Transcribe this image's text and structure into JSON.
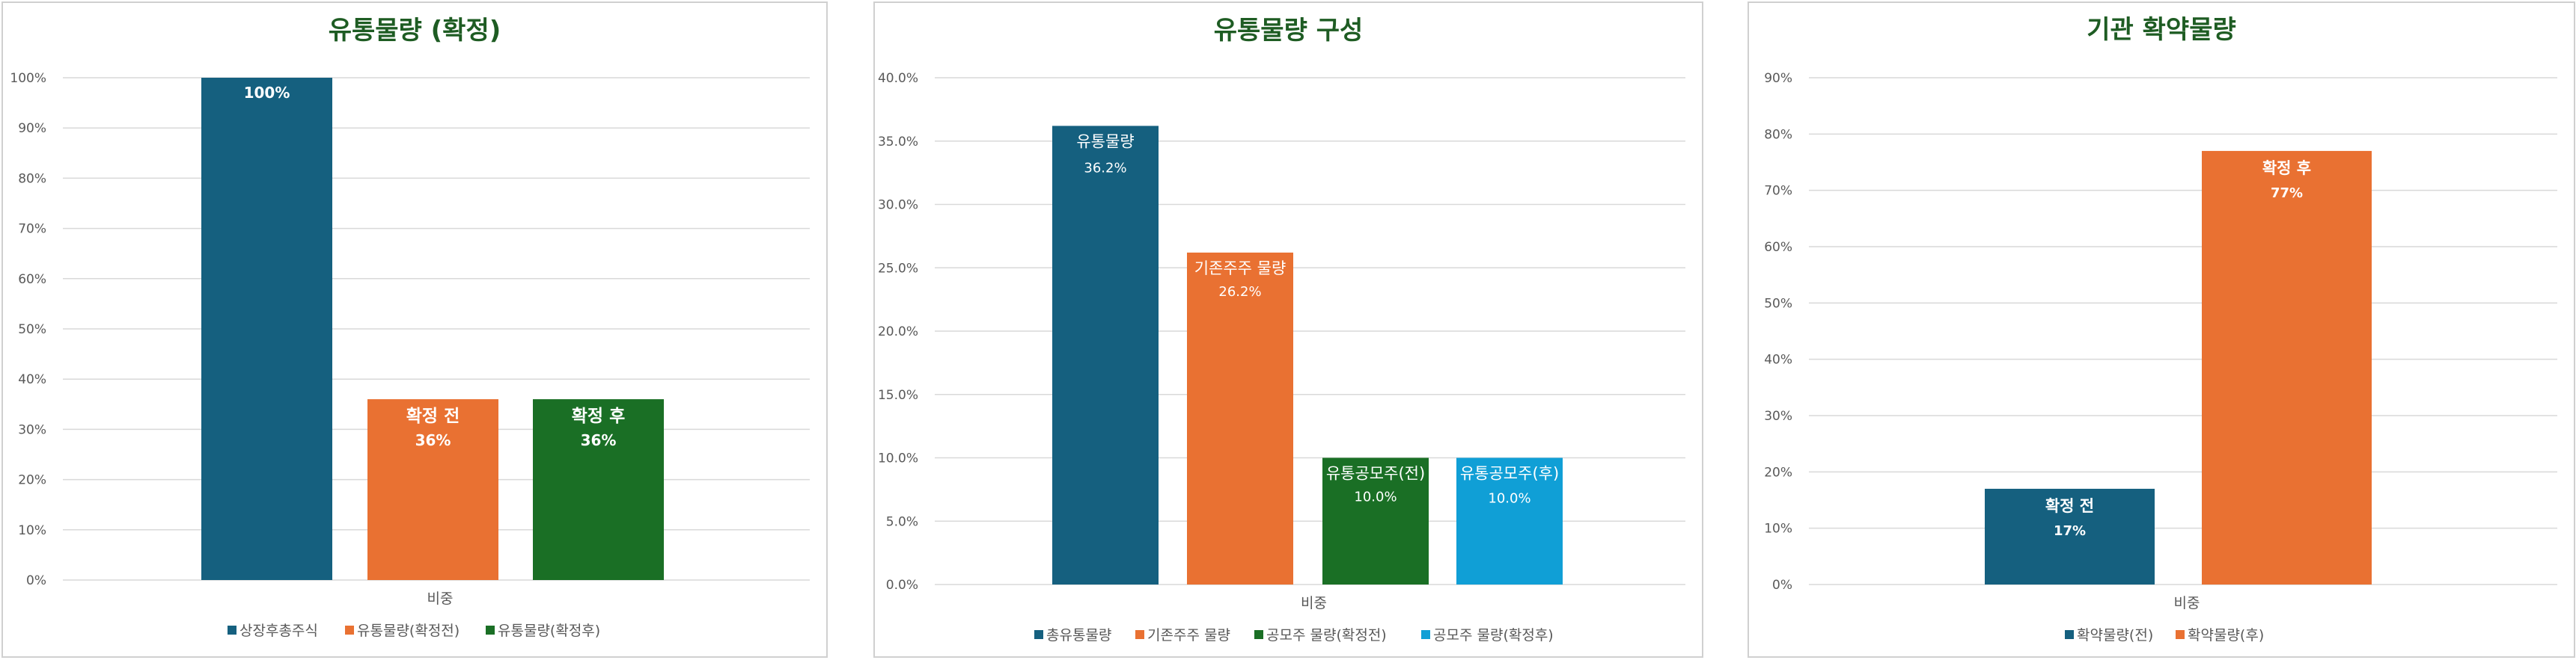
{
  "colors": {
    "title": "#1e5c23",
    "axis_text": "#595959",
    "grid": "#d9d9d9",
    "blue": "#15607f",
    "orange": "#e97132",
    "green": "#1a6f25",
    "cyan": "#109fd6"
  },
  "chart_data": [
    {
      "type": "bar",
      "title": "유통물량 (확정)",
      "categories": [
        "비중"
      ],
      "ylim": [
        0,
        100
      ],
      "ytick_step": 10,
      "ytick_format": "percent0",
      "legend_position": "bottom",
      "grid": true,
      "series": [
        {
          "name": "상장후총주식",
          "values": [
            100
          ],
          "color": "blue",
          "data_label": "100%",
          "inner_label": ""
        },
        {
          "name": "유통물량(확정전)",
          "values": [
            36
          ],
          "color": "orange",
          "data_label": "36%",
          "inner_label": "확정 전"
        },
        {
          "name": "유통물량(확정후)",
          "values": [
            36
          ],
          "color": "green",
          "data_label": "36%",
          "inner_label": "확정 후"
        }
      ]
    },
    {
      "type": "bar",
      "title": "유통물량 구성",
      "categories": [
        "비중"
      ],
      "ylim": [
        0,
        40
      ],
      "ytick_step": 5,
      "ytick_format": "percent1",
      "legend_position": "bottom",
      "grid": true,
      "series": [
        {
          "name": "총유통물량",
          "values": [
            36.2
          ],
          "color": "blue",
          "data_label": "36.2%",
          "inner_label": "유통물량"
        },
        {
          "name": "기존주주 물량",
          "values": [
            26.2
          ],
          "color": "orange",
          "data_label": "26.2%",
          "inner_label": "기존주주 물량"
        },
        {
          "name": "공모주 물량(확정전)",
          "values": [
            10.0
          ],
          "color": "green",
          "data_label": "10.0%",
          "inner_label": "유통공모주(전)"
        },
        {
          "name": "공모주 물량(확정후)",
          "values": [
            10.0
          ],
          "color": "cyan",
          "data_label": "10.0%",
          "inner_label": "유통공모주(후)"
        }
      ]
    },
    {
      "type": "bar",
      "title": "기관 확약물량",
      "categories": [
        "비중"
      ],
      "ylim": [
        0,
        90
      ],
      "ytick_step": 10,
      "ytick_format": "percent0",
      "legend_position": "bottom",
      "grid": true,
      "series": [
        {
          "name": "확약물량(전)",
          "values": [
            17
          ],
          "color": "blue",
          "data_label": "17%",
          "inner_label": "확정 전"
        },
        {
          "name": "확약물량(후)",
          "values": [
            77
          ],
          "color": "orange",
          "data_label": "77%",
          "inner_label": "확정 후"
        }
      ]
    }
  ]
}
